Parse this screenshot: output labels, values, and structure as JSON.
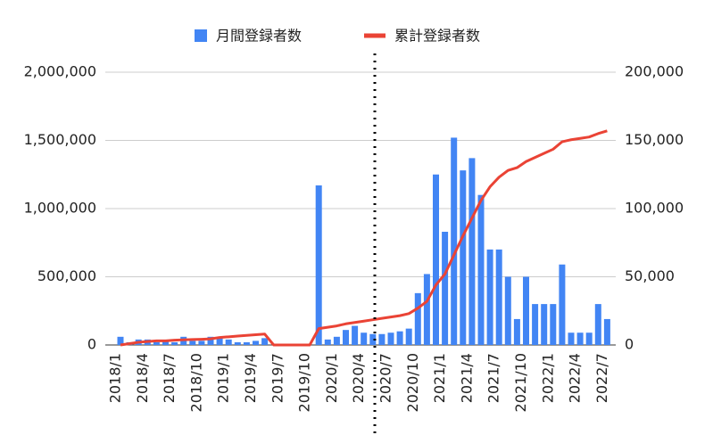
{
  "chart_data": {
    "type": "combo",
    "categories": [
      "2018/1",
      null,
      null,
      "2018/4",
      null,
      null,
      "2018/7",
      null,
      null,
      "2018/10",
      null,
      null,
      "2019/1",
      null,
      null,
      "2019/4",
      null,
      null,
      "2019/7",
      null,
      null,
      "2019/10",
      null,
      null,
      "2020/1",
      null,
      null,
      "2020/4",
      null,
      null,
      "2020/7",
      null,
      null,
      "2020/10",
      null,
      null,
      "2021/1",
      null,
      null,
      "2021/4",
      null,
      null,
      "2021/7",
      null,
      null,
      "2021/10",
      null,
      null,
      "2022/1",
      null,
      null,
      "2022/4",
      null,
      null,
      "2022/7"
    ],
    "series": [
      {
        "name": "月間登録者数",
        "type": "bar",
        "color": "#4285f4",
        "axis": "y",
        "values": [
          60000,
          20000,
          40000,
          40000,
          20000,
          30000,
          20000,
          60000,
          30000,
          30000,
          60000,
          50000,
          40000,
          20000,
          20000,
          30000,
          50000,
          0,
          0,
          0,
          0,
          0,
          1170000,
          40000,
          60000,
          110000,
          140000,
          90000,
          80000,
          80000,
          90000,
          100000,
          120000,
          380000,
          520000,
          1250000,
          830000,
          1520000,
          1280000,
          1370000,
          1100000,
          700000,
          700000,
          500000,
          190000,
          500000,
          300000,
          300000,
          300000,
          590000,
          90000,
          90000,
          90000,
          300000,
          190000
        ]
      },
      {
        "name": "累計登録者数",
        "type": "line",
        "color": "#ea4335",
        "axis": "y2",
        "values": [
          0,
          1000,
          2000,
          2500,
          3000,
          3000,
          3500,
          3800,
          4000,
          4200,
          4500,
          5500,
          6000,
          6500,
          7000,
          7500,
          8000,
          0,
          0,
          0,
          0,
          0,
          12000,
          13000,
          14000,
          15500,
          16500,
          17500,
          18500,
          19500,
          20500,
          21500,
          23000,
          27000,
          32000,
          44000,
          52000,
          66000,
          80000,
          93000,
          106000,
          116000,
          123000,
          128000,
          130000,
          134500,
          137500,
          140500,
          143500,
          149000,
          150500,
          151500,
          152500,
          155000,
          157000
        ]
      }
    ],
    "ylim": [
      0,
      2000000
    ],
    "yticks": [
      0,
      {
        "value": 500000,
        "label": "500,000"
      },
      {
        "value": 1000000,
        "label": "1,000,000"
      },
      {
        "value": 1500000,
        "label": "1,500,000"
      },
      {
        "value": 2000000,
        "label": "2,000,000"
      }
    ],
    "y2lim": [
      0,
      200000
    ],
    "y2ticks": [
      0,
      {
        "value": 50000,
        "label": "50,000"
      },
      {
        "value": 100000,
        "label": "100,000"
      },
      {
        "value": 150000,
        "label": "150,000"
      },
      {
        "value": 200000,
        "label": "200,000"
      }
    ],
    "grid": true,
    "legend": "top"
  }
}
